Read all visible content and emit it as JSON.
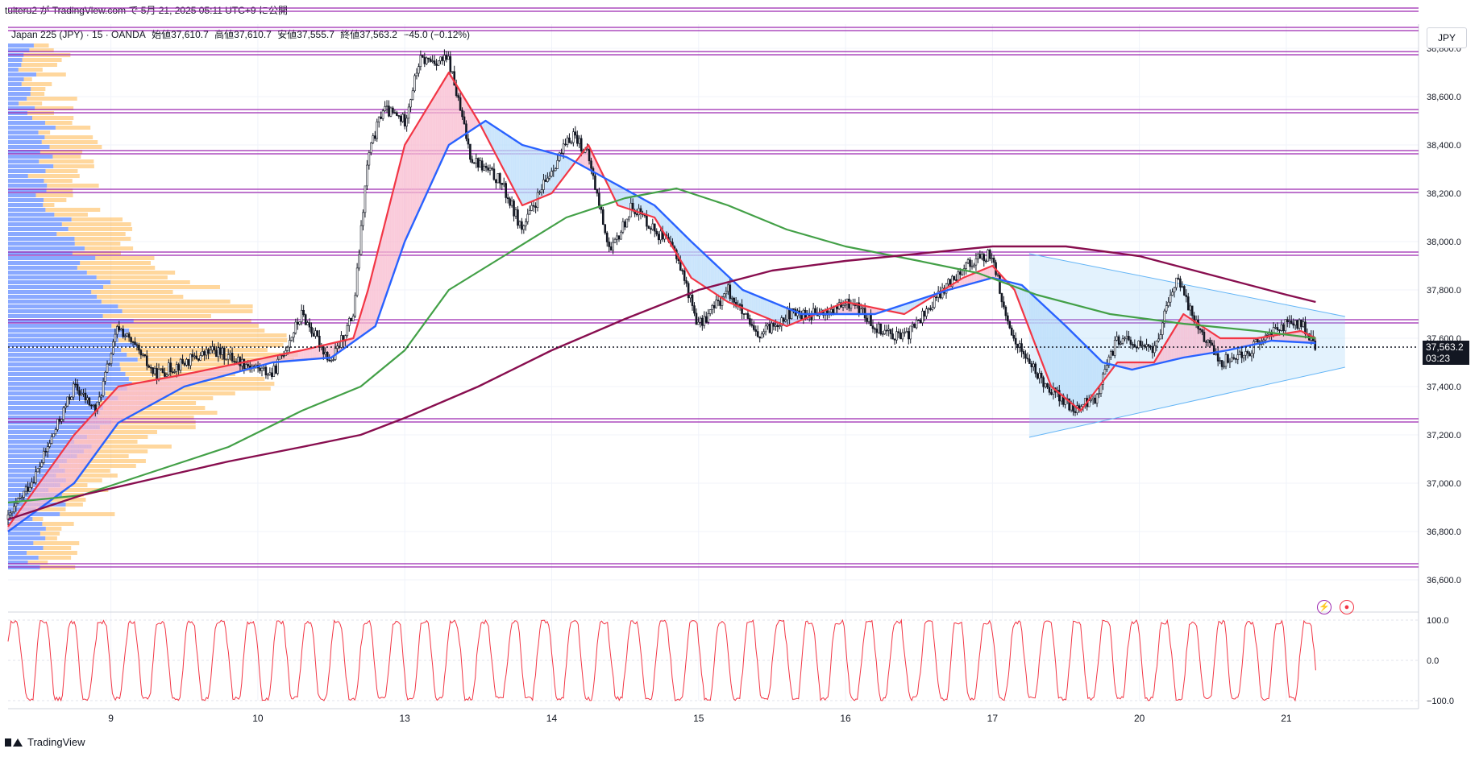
{
  "header": {
    "publish_line": "tuiteru2 が TradingView.com で 5月 21, 2025 05:11 UTC+9 に公開"
  },
  "symbol_line": {
    "name": "Japan 225 (JPY) · 15 · OANDA",
    "open": "始値37,610.7",
    "high": "高値37,610.7",
    "low": "安値37,555.7",
    "close": "終値37,563.2",
    "change": "−45.0 (−0.12%)"
  },
  "currency_button": "JPY",
  "last_price": {
    "value": "37,563.2",
    "countdown": "03:23"
  },
  "footer": {
    "brand": "TradingView"
  },
  "colors": {
    "up": "#131722",
    "ema_fast": "#f23645",
    "ema_mid": "#2962ff",
    "ema_slow": "#43a047",
    "ema_long": "#880e4f",
    "hline": "#9c27b0",
    "triangle": "#90caf9",
    "vp_up": "#2962ff",
    "vp_down": "#ffb74d",
    "osc": "#f23645"
  },
  "icons": [
    "lightning-icon",
    "record-icon"
  ],
  "chart_data": {
    "type": "candlestick",
    "ylim": [
      36600,
      38900
    ],
    "y_ticks": [
      "38,800.0",
      "38,600.0",
      "38,400.0",
      "38,200.0",
      "38,000.0",
      "37,800.0",
      "37,600.0",
      "37,400.0",
      "37,200.0",
      "37,000.0",
      "36,800.0",
      "36,600.0"
    ],
    "y_tick_values": [
      38800,
      38600,
      38400,
      38200,
      38000,
      37800,
      37600,
      37400,
      37200,
      37000,
      36800,
      36600
    ],
    "x_ticks": [
      "9",
      "10",
      "13",
      "14",
      "15",
      "16",
      "17",
      "20",
      "21"
    ],
    "x_tick_positions": [
      1,
      2,
      3,
      4,
      5,
      6,
      7,
      8,
      9
    ],
    "xlim": [
      0.3,
      9.9
    ],
    "horizontal_levels": [
      38960,
      38880,
      38780,
      38540,
      38370,
      38210,
      37950,
      37670,
      37260,
      36660
    ],
    "price_path": [
      [
        0.3,
        36850
      ],
      [
        0.5,
        37050
      ],
      [
        0.75,
        37400
      ],
      [
        0.9,
        37300
      ],
      [
        1.05,
        37650
      ],
      [
        1.3,
        37450
      ],
      [
        1.5,
        37500
      ],
      [
        1.7,
        37550
      ],
      [
        1.9,
        37500
      ],
      [
        2.1,
        37450
      ],
      [
        2.3,
        37700
      ],
      [
        2.5,
        37500
      ],
      [
        2.65,
        37700
      ],
      [
        2.75,
        38350
      ],
      [
        2.85,
        38550
      ],
      [
        3.0,
        38500
      ],
      [
        3.1,
        38750
      ],
      [
        3.3,
        38750
      ],
      [
        3.45,
        38350
      ],
      [
        3.65,
        38250
      ],
      [
        3.8,
        38050
      ],
      [
        4.0,
        38300
      ],
      [
        4.15,
        38450
      ],
      [
        4.25,
        38350
      ],
      [
        4.4,
        37950
      ],
      [
        4.55,
        38150
      ],
      [
        4.7,
        38050
      ],
      [
        4.85,
        37950
      ],
      [
        5.0,
        37650
      ],
      [
        5.2,
        37800
      ],
      [
        5.4,
        37600
      ],
      [
        5.6,
        37700
      ],
      [
        5.85,
        37700
      ],
      [
        6.05,
        37750
      ],
      [
        6.2,
        37650
      ],
      [
        6.4,
        37600
      ],
      [
        6.6,
        37750
      ],
      [
        6.8,
        37900
      ],
      [
        7.0,
        37950
      ],
      [
        7.1,
        37650
      ],
      [
        7.3,
        37450
      ],
      [
        7.55,
        37300
      ],
      [
        7.7,
        37350
      ],
      [
        7.85,
        37600
      ],
      [
        8.1,
        37550
      ],
      [
        8.25,
        37850
      ],
      [
        8.4,
        37650
      ],
      [
        8.55,
        37500
      ],
      [
        8.75,
        37550
      ],
      [
        8.95,
        37650
      ],
      [
        9.1,
        37660
      ],
      [
        9.2,
        37563
      ]
    ],
    "series": [
      {
        "values": [
          [
            0.3,
            36820
          ],
          [
            0.75,
            37200
          ],
          [
            1.05,
            37400
          ],
          [
            1.5,
            37450
          ],
          [
            1.9,
            37500
          ],
          [
            2.3,
            37550
          ],
          [
            2.65,
            37600
          ],
          [
            2.75,
            37800
          ],
          [
            3.0,
            38400
          ],
          [
            3.3,
            38700
          ],
          [
            3.5,
            38500
          ],
          [
            3.8,
            38150
          ],
          [
            4.0,
            38200
          ],
          [
            4.25,
            38400
          ],
          [
            4.45,
            38150
          ],
          [
            4.7,
            38100
          ],
          [
            4.95,
            37850
          ],
          [
            5.2,
            37750
          ],
          [
            5.6,
            37650
          ],
          [
            6.0,
            37750
          ],
          [
            6.4,
            37700
          ],
          [
            6.8,
            37850
          ],
          [
            7.0,
            37900
          ],
          [
            7.15,
            37800
          ],
          [
            7.4,
            37400
          ],
          [
            7.6,
            37300
          ],
          [
            7.85,
            37500
          ],
          [
            8.1,
            37500
          ],
          [
            8.3,
            37700
          ],
          [
            8.55,
            37600
          ],
          [
            8.8,
            37600
          ],
          [
            9.1,
            37630
          ],
          [
            9.2,
            37600
          ]
        ]
      },
      {
        "values": [
          [
            0.3,
            36800
          ],
          [
            0.75,
            37000
          ],
          [
            1.05,
            37250
          ],
          [
            1.5,
            37400
          ],
          [
            2.1,
            37500
          ],
          [
            2.5,
            37520
          ],
          [
            2.8,
            37650
          ],
          [
            3.0,
            38000
          ],
          [
            3.3,
            38400
          ],
          [
            3.55,
            38500
          ],
          [
            3.8,
            38400
          ],
          [
            4.1,
            38350
          ],
          [
            4.4,
            38250
          ],
          [
            4.7,
            38150
          ],
          [
            4.95,
            38000
          ],
          [
            5.3,
            37800
          ],
          [
            5.7,
            37700
          ],
          [
            6.2,
            37700
          ],
          [
            6.7,
            37800
          ],
          [
            7.0,
            37850
          ],
          [
            7.2,
            37820
          ],
          [
            7.5,
            37650
          ],
          [
            7.75,
            37500
          ],
          [
            7.95,
            37470
          ],
          [
            8.3,
            37520
          ],
          [
            8.6,
            37550
          ],
          [
            8.9,
            37590
          ],
          [
            9.2,
            37580
          ]
        ]
      },
      {
        "values": [
          [
            0.3,
            36920
          ],
          [
            0.8,
            36950
          ],
          [
            1.3,
            37050
          ],
          [
            1.8,
            37150
          ],
          [
            2.3,
            37300
          ],
          [
            2.7,
            37400
          ],
          [
            3.0,
            37550
          ],
          [
            3.3,
            37800
          ],
          [
            3.7,
            37950
          ],
          [
            4.1,
            38100
          ],
          [
            4.5,
            38180
          ],
          [
            4.85,
            38220
          ],
          [
            5.2,
            38150
          ],
          [
            5.6,
            38050
          ],
          [
            6.0,
            37980
          ],
          [
            6.5,
            37920
          ],
          [
            6.9,
            37870
          ],
          [
            7.3,
            37780
          ],
          [
            7.8,
            37700
          ],
          [
            8.3,
            37660
          ],
          [
            8.8,
            37630
          ],
          [
            9.2,
            37600
          ]
        ]
      },
      {
        "values": [
          [
            0.3,
            36850
          ],
          [
            0.8,
            36950
          ],
          [
            1.3,
            37020
          ],
          [
            1.8,
            37090
          ],
          [
            2.3,
            37150
          ],
          [
            2.7,
            37200
          ],
          [
            3.0,
            37270
          ],
          [
            3.5,
            37400
          ],
          [
            4.0,
            37550
          ],
          [
            4.5,
            37680
          ],
          [
            5.0,
            37800
          ],
          [
            5.5,
            37880
          ],
          [
            6.0,
            37920
          ],
          [
            6.5,
            37950
          ],
          [
            7.0,
            37980
          ],
          [
            7.5,
            37980
          ],
          [
            8.0,
            37940
          ],
          [
            8.5,
            37860
          ],
          [
            9.0,
            37780
          ],
          [
            9.2,
            37750
          ]
        ]
      }
    ],
    "triangle": {
      "apex_x": 9.4,
      "apex_top": 37690,
      "apex_bottom": 37480,
      "start_x": 7.25,
      "start_top": 37950,
      "start_bottom": 37190
    },
    "oscillator": {
      "ylim": [
        -100,
        100
      ],
      "ticks": [
        "100.0",
        "0.0",
        "−100.0"
      ],
      "tick_values": [
        100,
        0,
        -100
      ]
    }
  }
}
